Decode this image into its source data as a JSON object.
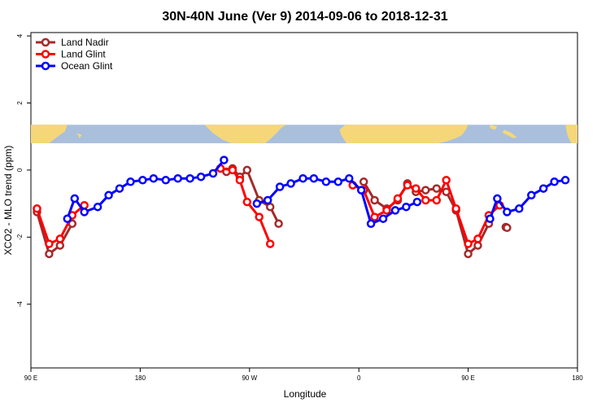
{
  "chart_data": {
    "type": "line",
    "title": "30N-40N June (Ver 9)   2014-09-06 to 2018-12-31",
    "xlabel": "Longitude",
    "ylabel": "XCO2 - MLO trend (ppm)",
    "x_ticks": [
      {
        "value": 90,
        "label": "90 E"
      },
      {
        "value": 180,
        "label": "180"
      },
      {
        "value": 270,
        "label": "90 W"
      },
      {
        "value": 360,
        "label": "0"
      },
      {
        "value": 450,
        "label": "90 E"
      },
      {
        "value": 540,
        "label": "180"
      }
    ],
    "y_ticks": [
      4,
      2,
      0,
      -2,
      -4
    ],
    "xlim": [
      90,
      540
    ],
    "ylim": [
      -5.9,
      4.1
    ],
    "map_strip_y": [
      0.8,
      1.35
    ],
    "legend_position": "top-left",
    "series": [
      {
        "name": "Land Nadir",
        "color": "#a52a2a",
        "segments": [
          [
            [
              95,
              -1.25
            ],
            [
              105,
              -2.5
            ],
            [
              114,
              -2.25
            ],
            [
              124,
              -1.6
            ]
          ],
          [
            [
              246,
              0.05
            ],
            [
              251,
              -0.05
            ],
            [
              256,
              0.05
            ],
            [
              262,
              -0.2
            ],
            [
              268,
              0.0
            ],
            [
              278,
              -0.9
            ],
            [
              287,
              -1.1
            ],
            [
              294,
              -1.6
            ]
          ],
          [
            [
              364,
              -0.35
            ],
            [
              373,
              -0.9
            ],
            [
              383,
              -1.15
            ],
            [
              392,
              -0.9
            ],
            [
              400,
              -0.4
            ],
            [
              407,
              -0.65
            ],
            [
              415,
              -0.6
            ],
            [
              424,
              -0.55
            ],
            [
              432,
              -0.65
            ],
            [
              440,
              -1.2
            ],
            [
              450,
              -2.5
            ],
            [
              458,
              -2.25
            ],
            [
              467,
              -1.6
            ]
          ],
          [
            [
              481,
              -1.7
            ],
            [
              482,
              -1.72
            ]
          ]
        ]
      },
      {
        "name": "Land Glint",
        "color": "#ff0000",
        "segments": [
          [
            [
              95,
              -1.15
            ],
            [
              105,
              -2.2
            ],
            [
              114,
              -2.05
            ],
            [
              124,
              -1.35
            ],
            [
              134,
              -1.05
            ]
          ],
          [
            [
              246,
              0.05
            ],
            [
              256,
              0.0
            ],
            [
              262,
              -0.3
            ],
            [
              268,
              -0.95
            ],
            [
              278,
              -1.4
            ],
            [
              287,
              -2.2
            ]
          ],
          [
            [
              355,
              -0.45
            ],
            [
              364,
              -0.6
            ],
            [
              373,
              -1.4
            ],
            [
              383,
              -1.2
            ],
            [
              392,
              -0.85
            ],
            [
              400,
              -0.45
            ],
            [
              407,
              -0.55
            ],
            [
              415,
              -0.9
            ],
            [
              424,
              -0.9
            ],
            [
              432,
              -0.3
            ],
            [
              440,
              -1.15
            ],
            [
              450,
              -2.2
            ],
            [
              458,
              -2.05
            ],
            [
              467,
              -1.35
            ],
            [
              476,
              -1.05
            ]
          ]
        ]
      },
      {
        "name": "Ocean Glint",
        "color": "#0000ff",
        "segments": [
          [
            [
              120,
              -1.45
            ],
            [
              126,
              -0.85
            ],
            [
              134,
              -1.25
            ],
            [
              145,
              -1.1
            ],
            [
              154,
              -0.75
            ],
            [
              163,
              -0.55
            ],
            [
              172,
              -0.35
            ],
            [
              182,
              -0.3
            ],
            [
              191,
              -0.25
            ],
            [
              201,
              -0.3
            ],
            [
              211,
              -0.25
            ],
            [
              221,
              -0.25
            ],
            [
              230,
              -0.2
            ],
            [
              240,
              -0.1
            ],
            [
              249,
              0.3
            ]
          ],
          [
            [
              276,
              -1.0
            ],
            [
              285,
              -0.9
            ],
            [
              295,
              -0.5
            ],
            [
              304,
              -0.4
            ],
            [
              314,
              -0.25
            ],
            [
              323,
              -0.25
            ],
            [
              333,
              -0.35
            ],
            [
              343,
              -0.35
            ],
            [
              352,
              -0.25
            ],
            [
              362,
              -0.6
            ],
            [
              370,
              -1.6
            ],
            [
              380,
              -1.45
            ],
            [
              390,
              -1.2
            ],
            [
              399,
              -1.1
            ],
            [
              408,
              -0.95
            ]
          ],
          [
            [
              468,
              -1.45
            ],
            [
              474,
              -0.85
            ],
            [
              482,
              -1.25
            ],
            [
              492,
              -1.15
            ],
            [
              502,
              -0.75
            ],
            [
              512,
              -0.55
            ],
            [
              521,
              -0.35
            ],
            [
              530,
              -0.3
            ]
          ]
        ]
      }
    ]
  }
}
